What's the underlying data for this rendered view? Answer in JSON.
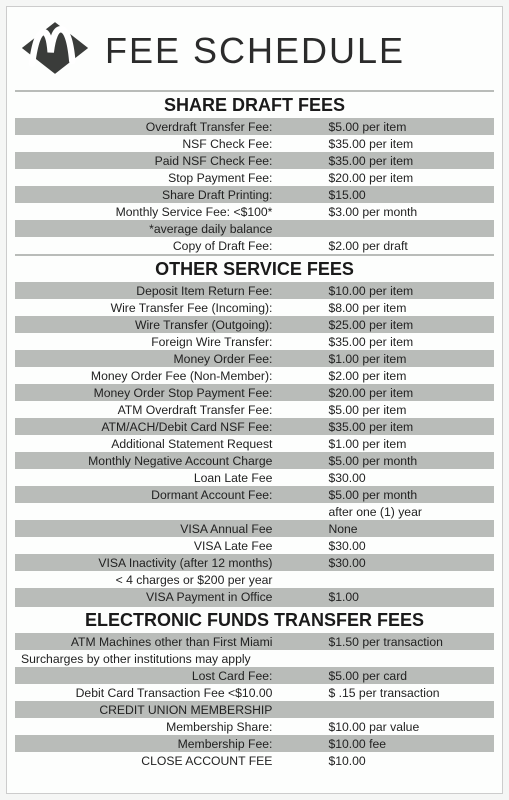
{
  "title": "FEE SCHEDULE",
  "colors": {
    "shade": "#b9bcb9",
    "light": "#fdfefd",
    "text": "#222222",
    "title": "#2b2b2b"
  },
  "sections": [
    {
      "title": "SHARE DRAFT FEES",
      "rows": [
        {
          "label": "Overdraft Transfer Fee:",
          "value": "$5.00 per item",
          "shade": true
        },
        {
          "label": "NSF Check Fee:",
          "value": "$35.00 per item",
          "shade": false
        },
        {
          "label": "Paid NSF Check Fee:",
          "value": "$35.00 per item",
          "shade": true
        },
        {
          "label": "Stop Payment Fee:",
          "value": "$20.00 per item",
          "shade": false
        },
        {
          "label": "Share Draft Printing:",
          "value": "$15.00",
          "shade": true
        },
        {
          "label": "Monthly Service Fee: <$100*",
          "value": "$3.00 per month",
          "shade": false
        },
        {
          "label": "*average daily balance",
          "value": "",
          "shade": true
        },
        {
          "label": "Copy of Draft Fee:",
          "value": "$2.00 per draft",
          "shade": false
        }
      ]
    },
    {
      "title": "OTHER SERVICE FEES",
      "rows": [
        {
          "label": "Deposit Item Return Fee:",
          "value": "$10.00 per item",
          "shade": true
        },
        {
          "label": "Wire Transfer Fee (Incoming):",
          "value": "$8.00 per item",
          "shade": false
        },
        {
          "label": "Wire Transfer (Outgoing):",
          "value": "$25.00 per item",
          "shade": true
        },
        {
          "label": "Foreign Wire Transfer:",
          "value": "$35.00 per item",
          "shade": false
        },
        {
          "label": "Money Order Fee:",
          "value": "$1.00 per item",
          "shade": true
        },
        {
          "label": "Money Order Fee (Non-Member):",
          "value": "$2.00 per item",
          "shade": false
        },
        {
          "label": "Money Order Stop Payment Fee:",
          "value": "$20.00 per item",
          "shade": true
        },
        {
          "label": "ATM Overdraft Transfer Fee:",
          "value": "$5.00 per item",
          "shade": false
        },
        {
          "label": "ATM/ACH/Debit Card NSF Fee:",
          "value": "$35.00 per item",
          "shade": true
        },
        {
          "label": "Additional Statement Request",
          "value": "$1.00 per item",
          "shade": false
        },
        {
          "label": "Monthly Negative Account Charge",
          "value": "$5.00 per month",
          "shade": true
        },
        {
          "label": "Loan Late Fee",
          "value": "$30.00",
          "shade": false
        },
        {
          "label": "Dormant Account Fee:",
          "value": "$5.00 per month",
          "shade": true
        },
        {
          "label": "",
          "value": "after one (1) year",
          "shade": false
        },
        {
          "label": "VISA Annual Fee",
          "value": "None",
          "shade": true
        },
        {
          "label": "VISA Late Fee",
          "value": "$30.00",
          "shade": false
        },
        {
          "label": "VISA Inactivity (after 12 months)",
          "value": "$30.00",
          "shade": true
        },
        {
          "label": "< 4 charges or $200 per year",
          "value": "",
          "shade": false
        },
        {
          "label": "VISA Payment in Office",
          "value": "$1.00",
          "shade": true
        }
      ]
    },
    {
      "title": "ELECTRONIC FUNDS TRANSFER FEES",
      "rows": [
        {
          "label": "ATM Machines other than First Miami",
          "value": "$1.50 per transaction",
          "shade": true
        },
        {
          "label": "Surcharges by other institutions may apply",
          "value": "",
          "shade": false,
          "span": true
        },
        {
          "label": "Lost Card Fee:",
          "value": "$5.00 per card",
          "shade": true
        },
        {
          "label": "Debit Card Transaction Fee <$10.00",
          "value": "$ .15 per transaction",
          "shade": false
        },
        {
          "label": "CREDIT UNION MEMBERSHIP",
          "value": "",
          "shade": true
        },
        {
          "label": "Membership Share:",
          "value": "$10.00 par value",
          "shade": false
        },
        {
          "label": "Membership Fee:",
          "value": "$10.00  fee",
          "shade": true
        },
        {
          "label": "CLOSE ACCOUNT FEE",
          "value": "$10.00",
          "shade": false
        }
      ]
    }
  ]
}
